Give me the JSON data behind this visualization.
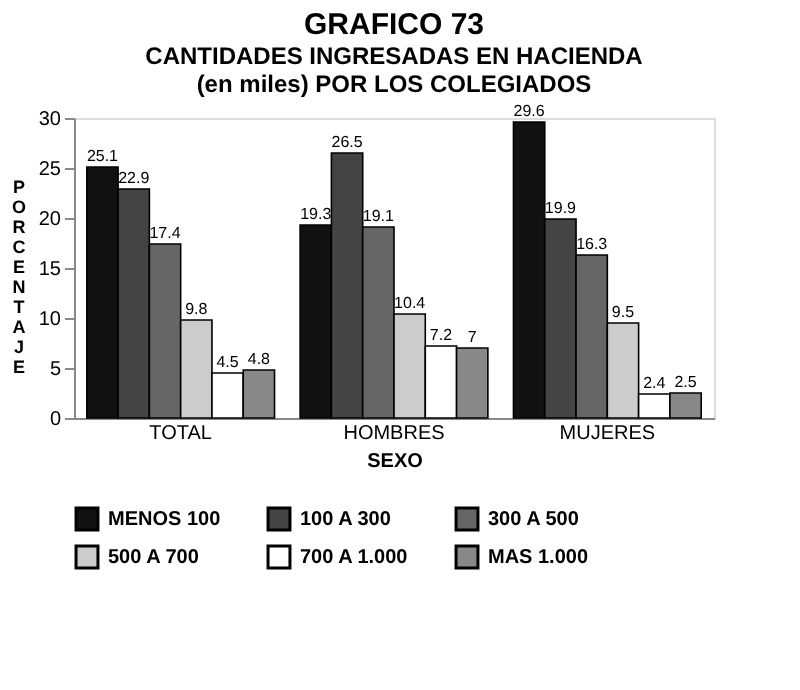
{
  "chart_data": {
    "type": "bar",
    "title": "GRAFICO 73",
    "subtitle": "CANTIDADES INGRESADAS EN HACIENDA\n(en miles) POR LOS COLEGIADOS",
    "xlabel": "SEXO",
    "ylabel": "PORCENTAJE",
    "categories": [
      "TOTAL",
      "HOMBRES",
      "MUJERES"
    ],
    "series": [
      {
        "name": "MENOS 100",
        "color": "#111111",
        "values": [
          25.1,
          19.3,
          29.6
        ]
      },
      {
        "name": "100 A 300",
        "color": "#444444",
        "values": [
          22.9,
          26.5,
          19.9
        ]
      },
      {
        "name": "300 A 500",
        "color": "#666666",
        "values": [
          17.4,
          19.1,
          16.3
        ]
      },
      {
        "name": "500 A 700",
        "color": "#cccccc",
        "values": [
          9.8,
          10.4,
          9.5
        ]
      },
      {
        "name": "700 A 1.000",
        "color": "#ffffff",
        "values": [
          4.5,
          7.2,
          2.4
        ]
      },
      {
        "name": "MAS 1.000",
        "color": "#888888",
        "values": [
          4.8,
          7,
          2.5
        ]
      }
    ],
    "ylim": [
      0,
      30
    ],
    "yticks": [
      0,
      5,
      10,
      15,
      20,
      25,
      30
    ],
    "grid": false,
    "legend": "bottom",
    "data_labels": true
  }
}
